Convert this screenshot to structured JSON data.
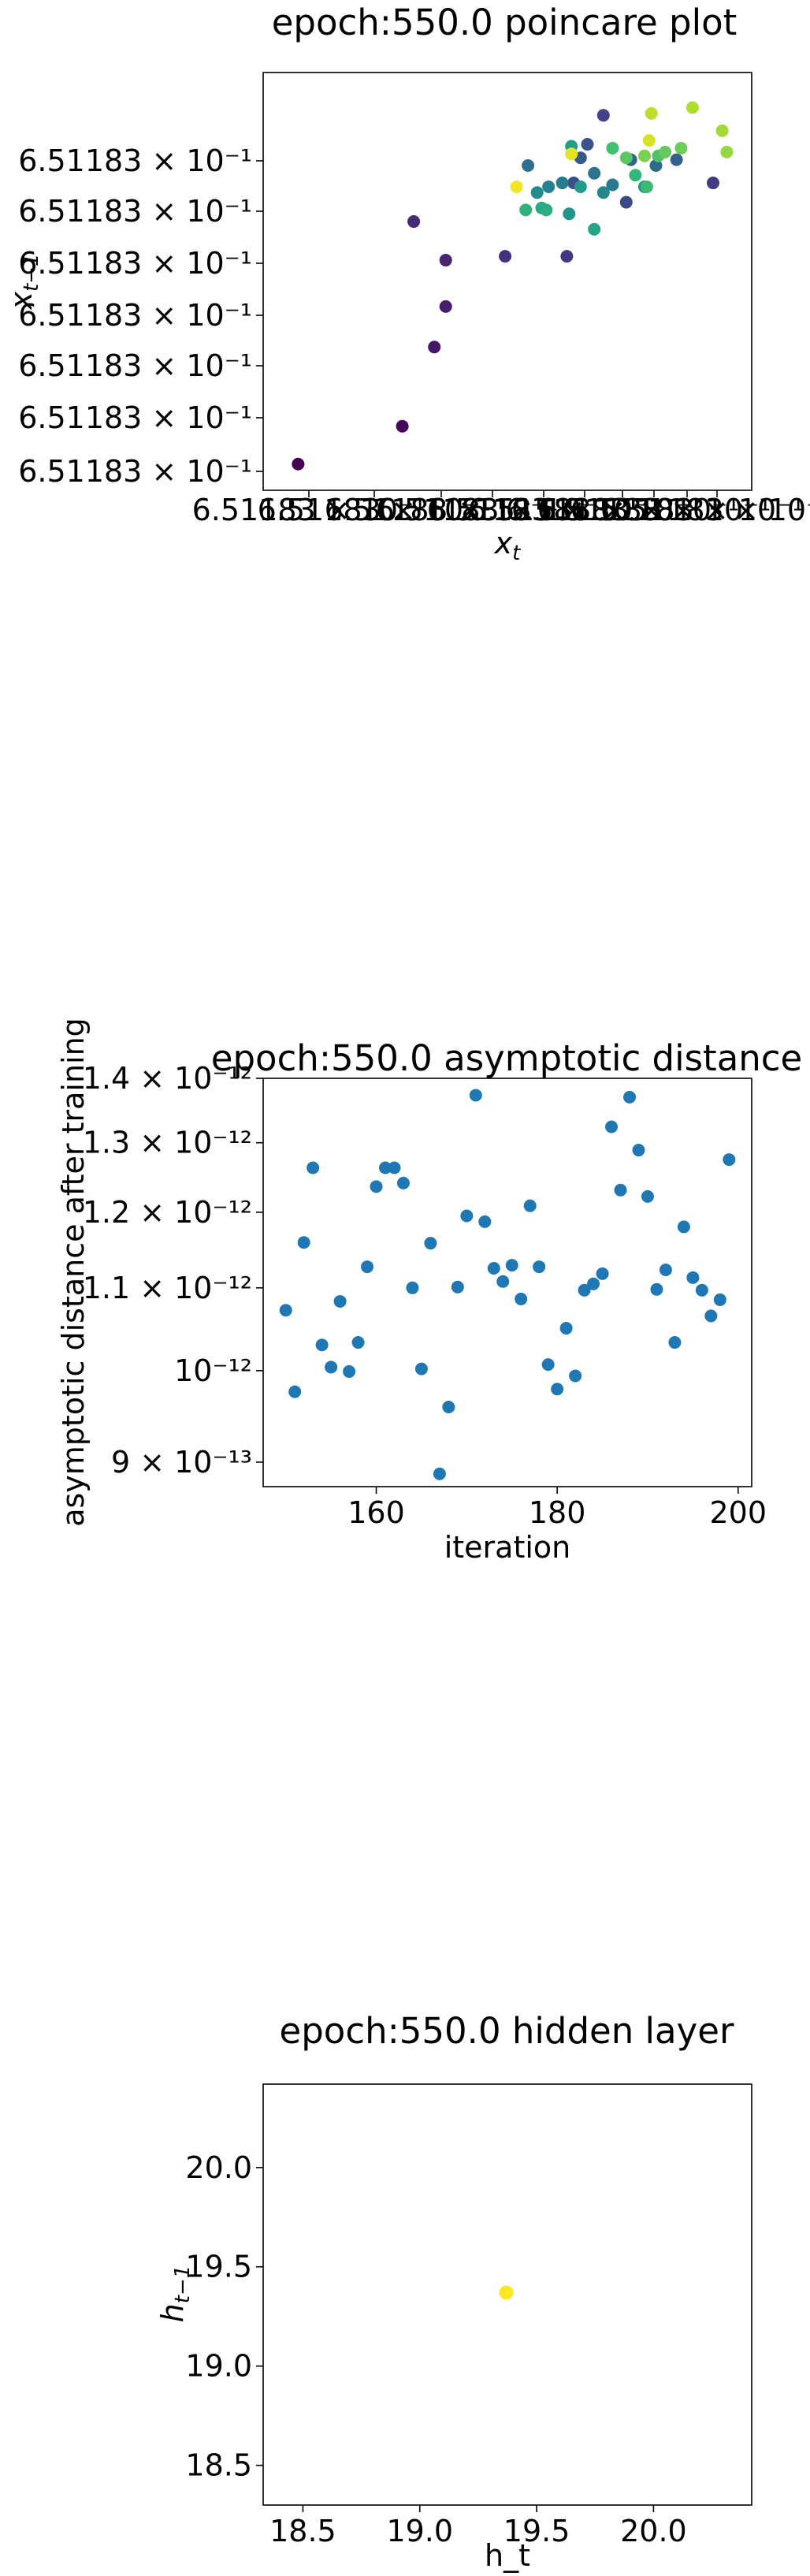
{
  "chart_data": [
    {
      "type": "scatter",
      "title": "epoch:550.0 poincare plot",
      "xlabel": "x_t",
      "ylabel": "x_{t-1}",
      "y_scale": "log",
      "x_scale": "log",
      "y_tick_labels": [
        "6.51183 × 10⁻¹",
        "6.51183 × 10⁻¹",
        "6.51183 × 10⁻¹",
        "6.51183 × 10⁻¹",
        "6.51183 × 10⁻¹",
        "6.51183 × 10⁻¹",
        "6.51183 × 10⁻¹"
      ],
      "x_tick_labels": [
        "6.51183 × 10⁻¹",
        "6.51183 × 10⁻¹",
        "6.51183 × 10⁻¹",
        "6.51183 × 10⁻¹",
        "6.51183 × 10⁻¹",
        "6.51183 × 10⁻¹",
        "6.51183 × 10⁻¹",
        "6.51183 × 10⁻¹",
        "6.51183 × 10⁻¹",
        "6.51183 × 10⁻¹"
      ],
      "xlim": [
        0,
        1
      ],
      "ylim": [
        0,
        1
      ],
      "colormap": "viridis",
      "points": [
        {
          "x": 0.042,
          "y": 0.027,
          "c": 0.0
        },
        {
          "x": 0.27,
          "y": 0.125,
          "c": 0.02
        },
        {
          "x": 0.34,
          "y": 0.33,
          "c": 0.06
        },
        {
          "x": 0.365,
          "y": 0.435,
          "c": 0.08
        },
        {
          "x": 0.365,
          "y": 0.555,
          "c": 0.1
        },
        {
          "x": 0.295,
          "y": 0.655,
          "c": 0.12
        },
        {
          "x": 0.495,
          "y": 0.565,
          "c": 0.14
        },
        {
          "x": 0.63,
          "y": 0.565,
          "c": 0.16
        },
        {
          "x": 0.95,
          "y": 0.755,
          "c": 0.18
        },
        {
          "x": 0.71,
          "y": 0.93,
          "c": 0.2
        },
        {
          "x": 0.76,
          "y": 0.705,
          "c": 0.22
        },
        {
          "x": 0.645,
          "y": 0.755,
          "c": 0.24
        },
        {
          "x": 0.675,
          "y": 0.855,
          "c": 0.26
        },
        {
          "x": 0.66,
          "y": 0.82,
          "c": 0.28
        },
        {
          "x": 0.87,
          "y": 0.815,
          "c": 0.3
        },
        {
          "x": 0.77,
          "y": 0.815,
          "c": 0.32
        },
        {
          "x": 0.825,
          "y": 0.8,
          "c": 0.34
        },
        {
          "x": 0.545,
          "y": 0.8,
          "c": 0.36
        },
        {
          "x": 0.69,
          "y": 0.78,
          "c": 0.38
        },
        {
          "x": 0.73,
          "y": 0.75,
          "c": 0.4
        },
        {
          "x": 0.62,
          "y": 0.755,
          "c": 0.42
        },
        {
          "x": 0.59,
          "y": 0.745,
          "c": 0.44
        },
        {
          "x": 0.71,
          "y": 0.73,
          "c": 0.46
        },
        {
          "x": 0.565,
          "y": 0.73,
          "c": 0.48
        },
        {
          "x": 0.8,
          "y": 0.745,
          "c": 0.5
        },
        {
          "x": 0.635,
          "y": 0.675,
          "c": 0.52
        },
        {
          "x": 0.66,
          "y": 0.745,
          "c": 0.54
        },
        {
          "x": 0.64,
          "y": 0.85,
          "c": 0.56
        },
        {
          "x": 0.69,
          "y": 0.635,
          "c": 0.58
        },
        {
          "x": 0.575,
          "y": 0.69,
          "c": 0.6
        },
        {
          "x": 0.585,
          "y": 0.685,
          "c": 0.62
        },
        {
          "x": 0.54,
          "y": 0.685,
          "c": 0.64
        },
        {
          "x": 0.78,
          "y": 0.775,
          "c": 0.66
        },
        {
          "x": 0.805,
          "y": 0.745,
          "c": 0.68
        },
        {
          "x": 0.73,
          "y": 0.845,
          "c": 0.7
        },
        {
          "x": 0.83,
          "y": 0.825,
          "c": 0.72
        },
        {
          "x": 0.76,
          "y": 0.82,
          "c": 0.74
        },
        {
          "x": 0.845,
          "y": 0.835,
          "c": 0.76
        },
        {
          "x": 0.88,
          "y": 0.845,
          "c": 0.78
        },
        {
          "x": 0.8,
          "y": 0.825,
          "c": 0.8
        },
        {
          "x": 0.98,
          "y": 0.835,
          "c": 0.84
        },
        {
          "x": 0.97,
          "y": 0.89,
          "c": 0.86
        },
        {
          "x": 0.905,
          "y": 0.95,
          "c": 0.88
        },
        {
          "x": 0.815,
          "y": 0.935,
          "c": 0.9
        },
        {
          "x": 0.81,
          "y": 0.865,
          "c": 0.94
        },
        {
          "x": 0.64,
          "y": 0.83,
          "c": 0.96
        },
        {
          "x": 0.52,
          "y": 0.745,
          "c": 0.98
        }
      ]
    },
    {
      "type": "scatter",
      "title": "epoch:550.0 asymptotic distance",
      "xlabel": "iteration",
      "ylabel": "asymptotic distance after training",
      "y_scale": "log",
      "xlim": [
        147.5,
        201.5
      ],
      "ylim": [
        8.75e-13,
        1.4e-12
      ],
      "x_ticks": [
        160,
        180,
        200
      ],
      "x_tick_labels": [
        "160",
        "180",
        "200"
      ],
      "y_ticks": [
        9e-13,
        1e-12,
        1.1e-12,
        1.2e-12,
        1.3e-12,
        1.4e-12
      ],
      "y_tick_labels": [
        "9 × 10⁻¹³",
        "10⁻¹²",
        "1.1 × 10⁻¹²",
        "1.2 × 10⁻¹²",
        "1.3 × 10⁻¹²",
        "1.4 × 10⁻¹²"
      ],
      "color": "#1f77b4",
      "x": [
        150,
        151,
        152,
        153,
        154,
        155,
        156,
        157,
        158,
        159,
        160,
        161,
        162,
        163,
        164,
        165,
        166,
        167,
        168,
        169,
        170,
        171,
        172,
        173,
        174,
        175,
        176,
        177,
        178,
        179,
        180,
        181,
        182,
        183,
        184,
        185,
        186,
        187,
        188,
        189,
        190,
        191,
        192,
        193,
        194,
        195,
        196,
        197,
        198,
        199
      ],
      "y": [
        1.072e-12,
        9.76e-13,
        1.159e-12,
        1.263e-12,
        1.03e-12,
        1.004e-12,
        1.083e-12,
        9.99e-13,
        1.033e-12,
        1.127e-12,
        1.236e-12,
        1.263e-12,
        1.263e-12,
        1.241e-12,
        1.1e-12,
        1.002e-12,
        1.158e-12,
        8.88e-13,
        9.59e-13,
        1.101e-12,
        1.195e-12,
        1.373e-12,
        1.187e-12,
        1.125e-12,
        1.108e-12,
        1.129e-12,
        1.086e-12,
        1.209e-12,
        1.127e-12,
        1.007e-12,
        9.79e-13,
        1.05e-12,
        9.94e-13,
        1.097e-12,
        1.105e-12,
        1.118e-12,
        1.324e-12,
        1.231e-12,
        1.37e-12,
        1.289e-12,
        1.222e-12,
        1.098e-12,
        1.123e-12,
        1.033e-12,
        1.18e-12,
        1.113e-12,
        1.097e-12,
        1.065e-12,
        1.085e-12,
        1.275e-12
      ]
    },
    {
      "type": "scatter",
      "title": "epoch:550.0 hidden layer",
      "xlabel": "h_t",
      "ylabel": "h_{t-1}",
      "xlim": [
        18.33,
        20.42
      ],
      "ylim": [
        18.3,
        20.42
      ],
      "x_ticks": [
        18.5,
        19.0,
        19.5,
        20.0
      ],
      "x_tick_labels": [
        "18.5",
        "19.0",
        "19.5",
        "20.0"
      ],
      "y_ticks": [
        18.5,
        19.0,
        19.5,
        20.0
      ],
      "y_tick_labels": [
        "18.5",
        "19.0",
        "19.5",
        "20.0"
      ],
      "color": "#fde725",
      "points": [
        {
          "x": 19.37,
          "y": 19.37
        }
      ]
    }
  ]
}
